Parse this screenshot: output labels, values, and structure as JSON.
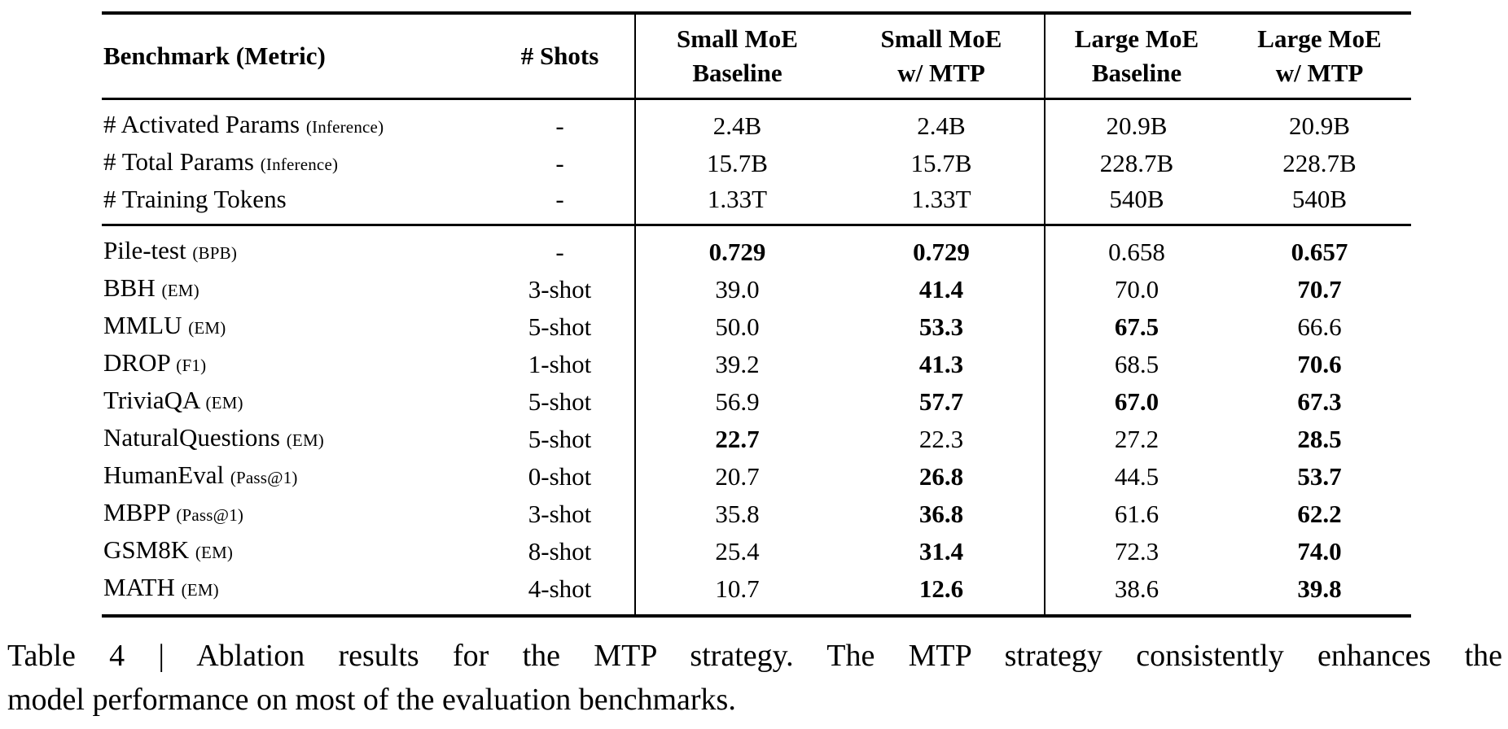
{
  "document": {
    "background": "#ffffff",
    "text_color": "#000000",
    "rule_color": "#000000"
  },
  "table": {
    "headers": [
      {
        "id": "benchmark",
        "lines": [
          "Benchmark (Metric)"
        ]
      },
      {
        "id": "shots",
        "lines": [
          "# Shots"
        ]
      },
      {
        "id": "small-moe-baseline",
        "lines": [
          "Small MoE",
          "Baseline"
        ]
      },
      {
        "id": "small-moe-mtp",
        "lines": [
          "Small MoE",
          "w/ MTP"
        ]
      },
      {
        "id": "large-moe-baseline",
        "lines": [
          "Large MoE",
          "Baseline"
        ]
      },
      {
        "id": "large-moe-mtp",
        "lines": [
          "Large MoE",
          "w/ MTP"
        ]
      }
    ],
    "sections": [
      {
        "name": "model-config",
        "rows": [
          {
            "benchmark": "# Activated Params",
            "metric": "(Inference)",
            "shots": "-",
            "values": [
              {
                "text": "2.4B",
                "bold": false
              },
              {
                "text": "2.4B",
                "bold": false
              },
              {
                "text": "20.9B",
                "bold": false
              },
              {
                "text": "20.9B",
                "bold": false
              }
            ]
          },
          {
            "benchmark": "# Total Params",
            "metric": "(Inference)",
            "shots": "-",
            "values": [
              {
                "text": "15.7B",
                "bold": false
              },
              {
                "text": "15.7B",
                "bold": false
              },
              {
                "text": "228.7B",
                "bold": false
              },
              {
                "text": "228.7B",
                "bold": false
              }
            ]
          },
          {
            "benchmark": "# Training Tokens",
            "metric": "",
            "shots": "-",
            "values": [
              {
                "text": "1.33T",
                "bold": false
              },
              {
                "text": "1.33T",
                "bold": false
              },
              {
                "text": "540B",
                "bold": false
              },
              {
                "text": "540B",
                "bold": false
              }
            ]
          }
        ]
      },
      {
        "name": "benchmarks",
        "rows": [
          {
            "benchmark": "Pile-test",
            "metric": "(BPB)",
            "shots": "-",
            "values": [
              {
                "text": "0.729",
                "bold": true
              },
              {
                "text": "0.729",
                "bold": true
              },
              {
                "text": "0.658",
                "bold": false
              },
              {
                "text": "0.657",
                "bold": true
              }
            ]
          },
          {
            "benchmark": "BBH",
            "metric": "(EM)",
            "shots": "3-shot",
            "values": [
              {
                "text": "39.0",
                "bold": false
              },
              {
                "text": "41.4",
                "bold": true
              },
              {
                "text": "70.0",
                "bold": false
              },
              {
                "text": "70.7",
                "bold": true
              }
            ]
          },
          {
            "benchmark": "MMLU",
            "metric": "(EM)",
            "shots": "5-shot",
            "values": [
              {
                "text": "50.0",
                "bold": false
              },
              {
                "text": "53.3",
                "bold": true
              },
              {
                "text": "67.5",
                "bold": true
              },
              {
                "text": "66.6",
                "bold": false
              }
            ]
          },
          {
            "benchmark": "DROP",
            "metric": "(F1)",
            "shots": "1-shot",
            "values": [
              {
                "text": "39.2",
                "bold": false
              },
              {
                "text": "41.3",
                "bold": true
              },
              {
                "text": "68.5",
                "bold": false
              },
              {
                "text": "70.6",
                "bold": true
              }
            ]
          },
          {
            "benchmark": "TriviaQA",
            "metric": "(EM)",
            "shots": "5-shot",
            "values": [
              {
                "text": "56.9",
                "bold": false
              },
              {
                "text": "57.7",
                "bold": true
              },
              {
                "text": "67.0",
                "bold": true
              },
              {
                "text": "67.3",
                "bold": true
              }
            ]
          },
          {
            "benchmark": "NaturalQuestions",
            "metric": "(EM)",
            "shots": "5-shot",
            "values": [
              {
                "text": "22.7",
                "bold": true
              },
              {
                "text": "22.3",
                "bold": false
              },
              {
                "text": "27.2",
                "bold": false
              },
              {
                "text": "28.5",
                "bold": true
              }
            ]
          },
          {
            "benchmark": "HumanEval",
            "metric": "(Pass@1)",
            "shots": "0-shot",
            "values": [
              {
                "text": "20.7",
                "bold": false
              },
              {
                "text": "26.8",
                "bold": true
              },
              {
                "text": "44.5",
                "bold": false
              },
              {
                "text": "53.7",
                "bold": true
              }
            ]
          },
          {
            "benchmark": "MBPP",
            "metric": "(Pass@1)",
            "shots": "3-shot",
            "values": [
              {
                "text": "35.8",
                "bold": false
              },
              {
                "text": "36.8",
                "bold": true
              },
              {
                "text": "61.6",
                "bold": false
              },
              {
                "text": "62.2",
                "bold": true
              }
            ]
          },
          {
            "benchmark": "GSM8K",
            "metric": "(EM)",
            "shots": "8-shot",
            "values": [
              {
                "text": "25.4",
                "bold": false
              },
              {
                "text": "31.4",
                "bold": true
              },
              {
                "text": "72.3",
                "bold": false
              },
              {
                "text": "74.0",
                "bold": true
              }
            ]
          },
          {
            "benchmark": "MATH",
            "metric": "(EM)",
            "shots": "4-shot",
            "values": [
              {
                "text": "10.7",
                "bold": false
              },
              {
                "text": "12.6",
                "bold": true
              },
              {
                "text": "38.6",
                "bold": false
              },
              {
                "text": "39.8",
                "bold": true
              }
            ]
          }
        ]
      }
    ]
  },
  "caption": {
    "lines": [
      "Table 4 | Ablation results for the MTP strategy. The MTP strategy consistently enhances the",
      "model performance on most of the evaluation benchmarks."
    ]
  }
}
